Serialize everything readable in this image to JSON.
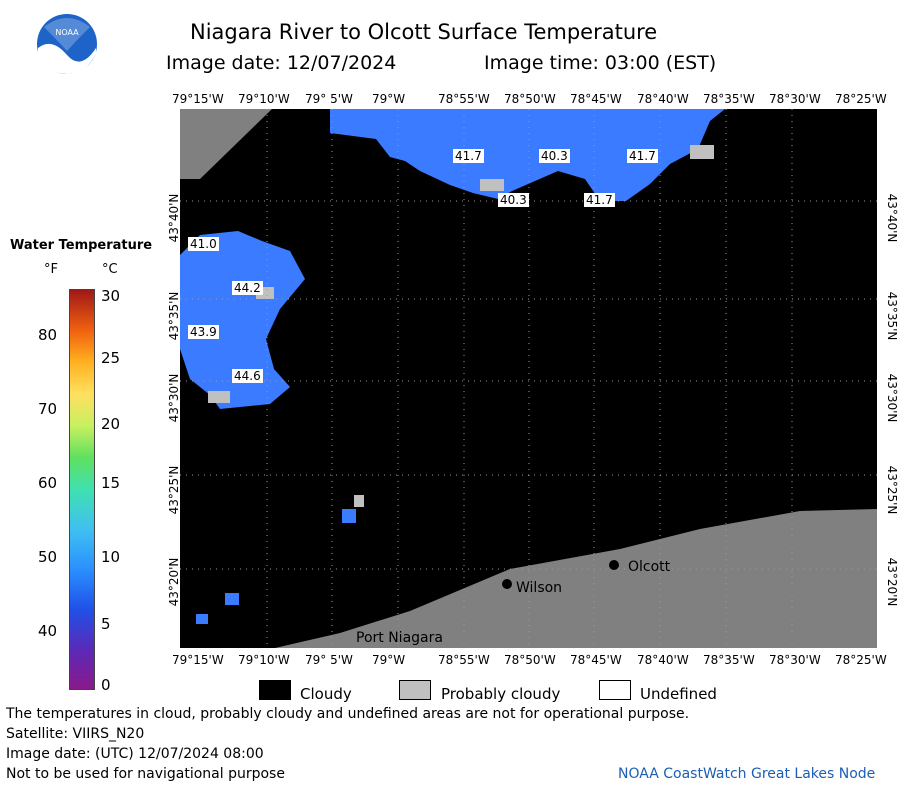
{
  "header": {
    "title": "Niagara River to Olcott Surface Temperature",
    "image_date": "Image date: 12/07/2024",
    "image_time": "Image time: 03:00 (EST)"
  },
  "logo": {
    "text": "NOAA"
  },
  "colorbar": {
    "title": "Water Temperature",
    "unit_f": "°F",
    "unit_c": "°C",
    "f_ticks": [
      "80",
      "70",
      "60",
      "50",
      "40"
    ],
    "c_ticks": [
      "30",
      "25",
      "20",
      "15",
      "10",
      "5",
      "0"
    ],
    "range_c": [
      0,
      30
    ],
    "range_f": [
      32,
      86
    ]
  },
  "axes": {
    "longitudes": [
      "79°15'W",
      "79°10'W",
      "79° 5'W",
      "79°W",
      "78°55'W",
      "78°50'W",
      "78°45'W",
      "78°40'W",
      "78°35'W",
      "78°30'W",
      "78°25'W"
    ],
    "latitudes": [
      "43°40'N",
      "43°35'N",
      "43°30'N",
      "43°25'N",
      "43°20'N"
    ]
  },
  "temperature_labels": [
    {
      "value": "41.7"
    },
    {
      "value": "40.3"
    },
    {
      "value": "41.7"
    },
    {
      "value": "40.3"
    },
    {
      "value": "41.7"
    },
    {
      "value": "41.0"
    },
    {
      "value": "44.2"
    },
    {
      "value": "43.9"
    },
    {
      "value": "44.6"
    }
  ],
  "places": [
    "Olcott",
    "Wilson",
    "Port Niagara"
  ],
  "legend": {
    "cloudy": "Cloudy",
    "probably_cloudy": "Probably cloudy",
    "undefined": "Undefined"
  },
  "footer": {
    "line1": "The temperatures in cloud, probably cloudy and undefined areas are not for operational purpose.",
    "line2": "Satellite: VIIRS_N20",
    "line3": "Image date: (UTC) 12/07/2024  08:00",
    "line4": "Not to be used for navigational purpose",
    "credit": "NOAA CoastWatch Great Lakes Node"
  },
  "colors": {
    "water": "#3b7bff",
    "land": "#808080",
    "cloud": "#000000",
    "probably_cloudy": "#c0c0c0",
    "credit": "#1a5fb4"
  }
}
